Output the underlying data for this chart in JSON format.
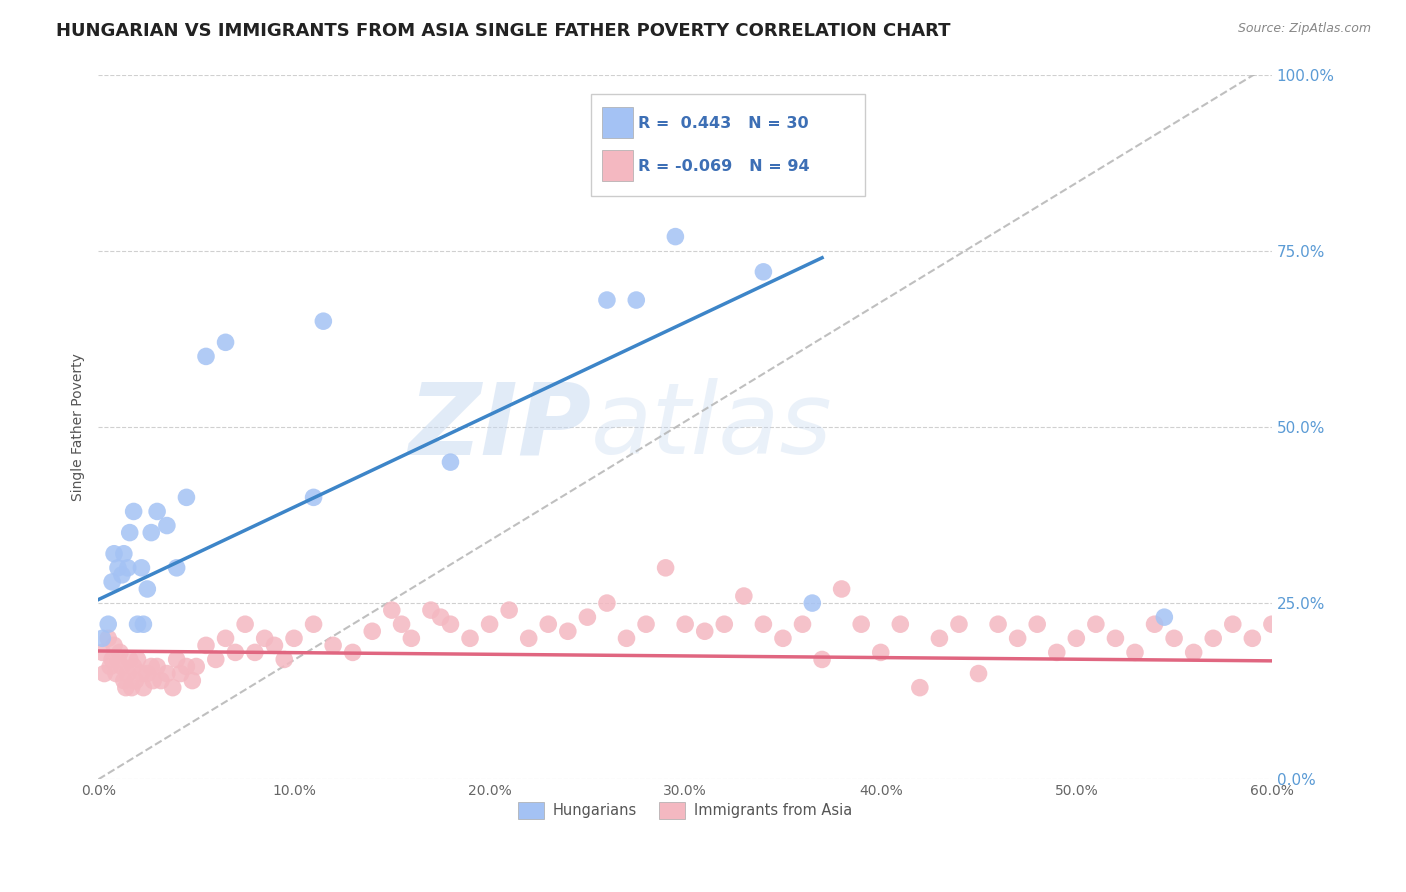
{
  "title": "HUNGARIAN VS IMMIGRANTS FROM ASIA SINGLE FATHER POVERTY CORRELATION CHART",
  "source": "Source: ZipAtlas.com",
  "ylabel": "Single Father Poverty",
  "xlabel_ticks": [
    "0.0%",
    "10.0%",
    "20.0%",
    "30.0%",
    "40.0%",
    "50.0%",
    "60.0%"
  ],
  "xlabel_vals": [
    0.0,
    0.1,
    0.2,
    0.3,
    0.4,
    0.5,
    0.6
  ],
  "ylabel_ticks": [
    "0.0%",
    "25.0%",
    "50.0%",
    "75.0%",
    "100.0%"
  ],
  "ylabel_vals": [
    0.0,
    0.25,
    0.5,
    0.75,
    1.0
  ],
  "xlim": [
    0.0,
    0.6
  ],
  "ylim": [
    0.0,
    1.0
  ],
  "R_hungarian": 0.443,
  "N_hungarian": 30,
  "R_asian": -0.069,
  "N_asian": 94,
  "blue_color": "#a4c2f4",
  "pink_color": "#f4b8c1",
  "blue_line_color": "#3d85c8",
  "pink_line_color": "#e06680",
  "gray_dash_color": "#b0b0b0",
  "watermark_zip": "ZIP",
  "watermark_atlas": "atlas",
  "bg_color": "#ffffff",
  "grid_color": "#d0d0d0",
  "title_fontsize": 13,
  "axis_label_fontsize": 10,
  "tick_fontsize": 10,
  "hungarian_x": [
    0.002,
    0.005,
    0.007,
    0.008,
    0.01,
    0.012,
    0.013,
    0.015,
    0.016,
    0.018,
    0.02,
    0.022,
    0.023,
    0.025,
    0.027,
    0.03,
    0.035,
    0.04,
    0.045,
    0.055,
    0.065,
    0.11,
    0.115,
    0.18,
    0.26,
    0.275,
    0.295,
    0.34,
    0.365,
    0.545
  ],
  "hungarian_y": [
    0.2,
    0.22,
    0.28,
    0.32,
    0.3,
    0.29,
    0.32,
    0.3,
    0.35,
    0.38,
    0.22,
    0.3,
    0.22,
    0.27,
    0.35,
    0.38,
    0.36,
    0.3,
    0.4,
    0.6,
    0.62,
    0.4,
    0.65,
    0.45,
    0.68,
    0.68,
    0.77,
    0.72,
    0.25,
    0.23
  ],
  "asian_x": [
    0.002,
    0.003,
    0.005,
    0.006,
    0.007,
    0.008,
    0.009,
    0.01,
    0.011,
    0.012,
    0.013,
    0.014,
    0.015,
    0.016,
    0.017,
    0.018,
    0.019,
    0.02,
    0.022,
    0.023,
    0.025,
    0.027,
    0.028,
    0.03,
    0.032,
    0.035,
    0.038,
    0.04,
    0.042,
    0.045,
    0.048,
    0.05,
    0.055,
    0.06,
    0.065,
    0.07,
    0.075,
    0.08,
    0.085,
    0.09,
    0.095,
    0.1,
    0.11,
    0.12,
    0.13,
    0.14,
    0.15,
    0.155,
    0.16,
    0.17,
    0.175,
    0.18,
    0.19,
    0.2,
    0.21,
    0.22,
    0.23,
    0.24,
    0.25,
    0.26,
    0.27,
    0.28,
    0.29,
    0.3,
    0.31,
    0.32,
    0.33,
    0.34,
    0.35,
    0.36,
    0.37,
    0.38,
    0.39,
    0.4,
    0.41,
    0.42,
    0.43,
    0.44,
    0.45,
    0.46,
    0.47,
    0.48,
    0.49,
    0.5,
    0.51,
    0.52,
    0.53,
    0.54,
    0.55,
    0.56,
    0.57,
    0.58,
    0.59,
    0.6
  ],
  "asian_y": [
    0.18,
    0.15,
    0.2,
    0.16,
    0.17,
    0.19,
    0.15,
    0.17,
    0.18,
    0.16,
    0.14,
    0.13,
    0.15,
    0.17,
    0.13,
    0.16,
    0.14,
    0.17,
    0.15,
    0.13,
    0.15,
    0.16,
    0.14,
    0.16,
    0.14,
    0.15,
    0.13,
    0.17,
    0.15,
    0.16,
    0.14,
    0.16,
    0.19,
    0.17,
    0.2,
    0.18,
    0.22,
    0.18,
    0.2,
    0.19,
    0.17,
    0.2,
    0.22,
    0.19,
    0.18,
    0.21,
    0.24,
    0.22,
    0.2,
    0.24,
    0.23,
    0.22,
    0.2,
    0.22,
    0.24,
    0.2,
    0.22,
    0.21,
    0.23,
    0.25,
    0.2,
    0.22,
    0.3,
    0.22,
    0.21,
    0.22,
    0.26,
    0.22,
    0.2,
    0.22,
    0.17,
    0.27,
    0.22,
    0.18,
    0.22,
    0.13,
    0.2,
    0.22,
    0.15,
    0.22,
    0.2,
    0.22,
    0.18,
    0.2,
    0.22,
    0.2,
    0.18,
    0.22,
    0.2,
    0.18,
    0.2,
    0.22,
    0.2,
    0.22
  ],
  "blue_trendline": [
    0.0,
    0.37,
    0.255,
    0.74
  ],
  "pink_trendline": [
    0.0,
    0.6,
    0.182,
    0.168
  ],
  "diag_line": [
    0.0,
    0.6,
    0.0,
    1.0
  ]
}
